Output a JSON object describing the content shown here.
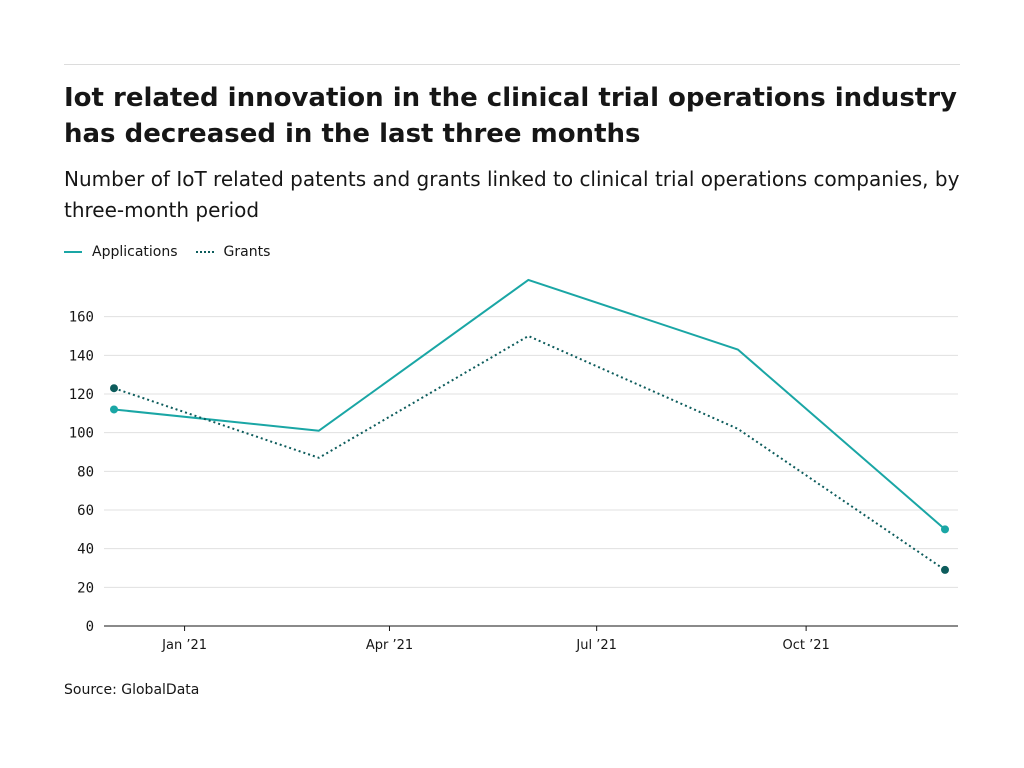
{
  "header": {
    "title": "Iot related innovation in the clinical trial operations industry has decreased in the last three months",
    "subtitle": "Number of IoT related patents and grants linked to clinical trial operations companies, by three-month period"
  },
  "footer": {
    "source": "Source: GlobalData"
  },
  "chart_data": {
    "type": "line",
    "title": "Iot related innovation in the clinical trial operations industry has decreased in the last three months",
    "subtitle": "Number of IoT related patents and grants linked to clinical trial operations companies, by three-month period",
    "xlabel": "",
    "ylabel": "",
    "x": [
      "2020-12-01",
      "2021-03-01",
      "2021-06-01",
      "2021-09-01",
      "2021-12-01"
    ],
    "x_ticks": [
      "Jan ’21",
      "Apr ’21",
      "Jul ’21",
      "Oct ’21"
    ],
    "y_ticks": [
      0,
      20,
      40,
      60,
      80,
      100,
      120,
      140,
      160
    ],
    "ylim": [
      0,
      180
    ],
    "grid": true,
    "legend_position": "top-left",
    "series": [
      {
        "name": "Applications",
        "values": [
          112,
          101,
          179,
          143,
          50
        ],
        "color": "#1aa6a5",
        "style": "solid"
      },
      {
        "name": "Grants",
        "values": [
          123,
          87,
          150,
          102,
          29
        ],
        "color": "#0d5c5c",
        "style": "dotted"
      }
    ]
  }
}
